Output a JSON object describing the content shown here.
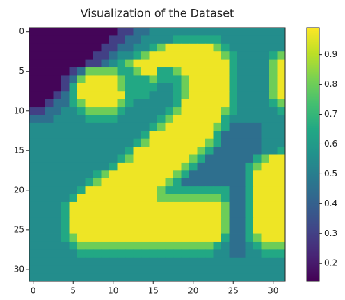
{
  "chart_data": {
    "type": "heatmap",
    "title": "Visualization of the Dataset",
    "colormap": "viridis",
    "xlim": [
      -0.5,
      31.5
    ],
    "ylim": [
      31.5,
      -0.5
    ],
    "xticks": [
      0,
      5,
      10,
      15,
      20,
      25,
      30
    ],
    "yticks": [
      0,
      5,
      10,
      15,
      20,
      25,
      30
    ],
    "clim": [
      0.14,
      0.99
    ],
    "cticks": [
      0.2,
      0.3,
      0.4,
      0.5,
      0.6,
      0.7,
      0.8,
      0.9
    ],
    "values": [
      [
        0.15,
        0.15,
        0.15,
        0.15,
        0.15,
        0.15,
        0.15,
        0.15,
        0.15,
        0.15,
        0.15,
        0.3,
        0.3,
        0.45,
        0.45,
        0.55,
        0.55,
        0.55,
        0.55,
        0.55,
        0.55,
        0.55,
        0.55,
        0.55,
        0.55,
        0.55,
        0.55,
        0.55,
        0.55,
        0.55,
        0.55,
        0.55
      ],
      [
        0.15,
        0.15,
        0.15,
        0.15,
        0.15,
        0.15,
        0.15,
        0.15,
        0.15,
        0.15,
        0.3,
        0.3,
        0.45,
        0.45,
        0.55,
        0.55,
        0.55,
        0.55,
        0.65,
        0.65,
        0.65,
        0.65,
        0.65,
        0.65,
        0.55,
        0.55,
        0.55,
        0.55,
        0.55,
        0.55,
        0.55,
        0.55
      ],
      [
        0.15,
        0.15,
        0.15,
        0.15,
        0.15,
        0.15,
        0.15,
        0.15,
        0.15,
        0.3,
        0.3,
        0.45,
        0.45,
        0.55,
        0.55,
        0.65,
        0.8,
        0.97,
        0.97,
        0.97,
        0.97,
        0.97,
        0.97,
        0.8,
        0.65,
        0.55,
        0.55,
        0.55,
        0.55,
        0.55,
        0.55,
        0.55
      ],
      [
        0.15,
        0.15,
        0.15,
        0.15,
        0.15,
        0.15,
        0.15,
        0.15,
        0.3,
        0.3,
        0.45,
        0.55,
        0.55,
        0.65,
        0.8,
        0.97,
        0.97,
        0.97,
        0.97,
        0.97,
        0.97,
        0.97,
        0.97,
        0.97,
        0.8,
        0.65,
        0.55,
        0.55,
        0.55,
        0.55,
        0.65,
        0.8
      ],
      [
        0.15,
        0.15,
        0.15,
        0.15,
        0.15,
        0.15,
        0.15,
        0.3,
        0.3,
        0.45,
        0.55,
        0.65,
        0.8,
        0.97,
        0.97,
        0.97,
        0.97,
        0.97,
        0.97,
        0.97,
        0.97,
        0.97,
        0.97,
        0.97,
        0.97,
        0.65,
        0.55,
        0.55,
        0.55,
        0.55,
        0.8,
        0.97
      ],
      [
        0.15,
        0.15,
        0.15,
        0.15,
        0.15,
        0.3,
        0.45,
        0.8,
        0.8,
        0.8,
        0.8,
        0.65,
        0.65,
        0.8,
        0.97,
        0.97,
        0.65,
        0.65,
        0.8,
        0.97,
        0.97,
        0.97,
        0.97,
        0.97,
        0.97,
        0.65,
        0.55,
        0.55,
        0.55,
        0.55,
        0.8,
        0.97
      ],
      [
        0.15,
        0.15,
        0.15,
        0.15,
        0.3,
        0.45,
        0.8,
        0.97,
        0.97,
        0.97,
        0.97,
        0.8,
        0.65,
        0.65,
        0.65,
        0.8,
        0.65,
        0.65,
        0.65,
        0.8,
        0.97,
        0.97,
        0.97,
        0.97,
        0.97,
        0.65,
        0.55,
        0.55,
        0.55,
        0.55,
        0.8,
        0.97
      ],
      [
        0.15,
        0.15,
        0.15,
        0.15,
        0.3,
        0.65,
        0.97,
        0.97,
        0.97,
        0.97,
        0.97,
        0.8,
        0.65,
        0.65,
        0.65,
        0.65,
        0.55,
        0.55,
        0.65,
        0.8,
        0.97,
        0.97,
        0.97,
        0.97,
        0.97,
        0.65,
        0.55,
        0.55,
        0.55,
        0.55,
        0.8,
        0.97
      ],
      [
        0.15,
        0.15,
        0.15,
        0.3,
        0.45,
        0.65,
        0.97,
        0.97,
        0.97,
        0.97,
        0.97,
        0.97,
        0.65,
        0.65,
        0.65,
        0.55,
        0.55,
        0.55,
        0.65,
        0.8,
        0.97,
        0.97,
        0.97,
        0.97,
        0.97,
        0.65,
        0.55,
        0.55,
        0.55,
        0.55,
        0.8,
        0.97
      ],
      [
        0.15,
        0.15,
        0.3,
        0.45,
        0.45,
        0.65,
        0.8,
        0.97,
        0.97,
        0.97,
        0.97,
        0.8,
        0.65,
        0.55,
        0.55,
        0.55,
        0.55,
        0.55,
        0.65,
        0.97,
        0.97,
        0.97,
        0.97,
        0.97,
        0.97,
        0.65,
        0.55,
        0.55,
        0.55,
        0.55,
        0.65,
        0.8
      ],
      [
        0.3,
        0.3,
        0.45,
        0.45,
        0.55,
        0.55,
        0.65,
        0.8,
        0.8,
        0.8,
        0.8,
        0.65,
        0.55,
        0.55,
        0.55,
        0.55,
        0.55,
        0.65,
        0.8,
        0.97,
        0.97,
        0.97,
        0.97,
        0.97,
        0.8,
        0.65,
        0.55,
        0.55,
        0.55,
        0.55,
        0.55,
        0.65
      ],
      [
        0.45,
        0.45,
        0.45,
        0.55,
        0.55,
        0.55,
        0.55,
        0.65,
        0.65,
        0.65,
        0.65,
        0.55,
        0.55,
        0.55,
        0.55,
        0.55,
        0.65,
        0.8,
        0.97,
        0.97,
        0.97,
        0.97,
        0.97,
        0.97,
        0.65,
        0.55,
        0.55,
        0.55,
        0.55,
        0.55,
        0.55,
        0.55
      ],
      [
        0.55,
        0.55,
        0.55,
        0.55,
        0.55,
        0.55,
        0.55,
        0.55,
        0.55,
        0.55,
        0.55,
        0.55,
        0.55,
        0.55,
        0.55,
        0.65,
        0.8,
        0.97,
        0.97,
        0.97,
        0.97,
        0.97,
        0.97,
        0.8,
        0.65,
        0.45,
        0.45,
        0.45,
        0.45,
        0.55,
        0.55,
        0.55
      ],
      [
        0.55,
        0.55,
        0.55,
        0.55,
        0.55,
        0.55,
        0.55,
        0.55,
        0.55,
        0.55,
        0.55,
        0.55,
        0.55,
        0.55,
        0.65,
        0.97,
        0.97,
        0.97,
        0.97,
        0.97,
        0.97,
        0.97,
        0.97,
        0.65,
        0.45,
        0.45,
        0.45,
        0.45,
        0.45,
        0.55,
        0.55,
        0.55
      ],
      [
        0.55,
        0.55,
        0.55,
        0.55,
        0.55,
        0.55,
        0.55,
        0.55,
        0.55,
        0.55,
        0.55,
        0.55,
        0.55,
        0.65,
        0.8,
        0.97,
        0.97,
        0.97,
        0.97,
        0.97,
        0.97,
        0.97,
        0.8,
        0.65,
        0.45,
        0.45,
        0.45,
        0.45,
        0.45,
        0.55,
        0.55,
        0.55
      ],
      [
        0.55,
        0.55,
        0.55,
        0.55,
        0.55,
        0.55,
        0.55,
        0.55,
        0.55,
        0.55,
        0.55,
        0.55,
        0.65,
        0.97,
        0.97,
        0.97,
        0.97,
        0.97,
        0.97,
        0.97,
        0.97,
        0.8,
        0.65,
        0.45,
        0.45,
        0.45,
        0.45,
        0.45,
        0.45,
        0.55,
        0.55,
        0.65
      ],
      [
        0.55,
        0.55,
        0.55,
        0.55,
        0.55,
        0.55,
        0.55,
        0.55,
        0.55,
        0.55,
        0.55,
        0.65,
        0.8,
        0.97,
        0.97,
        0.97,
        0.97,
        0.97,
        0.97,
        0.97,
        0.8,
        0.65,
        0.45,
        0.45,
        0.45,
        0.45,
        0.45,
        0.45,
        0.65,
        0.8,
        0.97,
        0.97
      ],
      [
        0.55,
        0.55,
        0.55,
        0.55,
        0.55,
        0.55,
        0.55,
        0.55,
        0.55,
        0.55,
        0.65,
        0.97,
        0.97,
        0.97,
        0.97,
        0.97,
        0.97,
        0.97,
        0.97,
        0.8,
        0.65,
        0.45,
        0.45,
        0.45,
        0.45,
        0.45,
        0.45,
        0.65,
        0.8,
        0.97,
        0.97,
        0.97
      ],
      [
        0.55,
        0.55,
        0.55,
        0.55,
        0.55,
        0.55,
        0.55,
        0.55,
        0.65,
        0.8,
        0.97,
        0.97,
        0.97,
        0.97,
        0.97,
        0.97,
        0.97,
        0.97,
        0.8,
        0.65,
        0.45,
        0.45,
        0.45,
        0.45,
        0.45,
        0.45,
        0.45,
        0.65,
        0.97,
        0.97,
        0.97,
        0.97
      ],
      [
        0.55,
        0.55,
        0.55,
        0.55,
        0.55,
        0.55,
        0.55,
        0.65,
        0.8,
        0.97,
        0.97,
        0.97,
        0.97,
        0.97,
        0.97,
        0.97,
        0.97,
        0.8,
        0.65,
        0.45,
        0.45,
        0.45,
        0.45,
        0.45,
        0.45,
        0.45,
        0.45,
        0.65,
        0.97,
        0.97,
        0.97,
        0.97
      ],
      [
        0.55,
        0.55,
        0.55,
        0.55,
        0.55,
        0.55,
        0.65,
        0.97,
        0.97,
        0.97,
        0.97,
        0.97,
        0.97,
        0.97,
        0.97,
        0.97,
        0.8,
        0.65,
        0.65,
        0.65,
        0.65,
        0.65,
        0.65,
        0.65,
        0.65,
        0.45,
        0.45,
        0.65,
        0.97,
        0.97,
        0.97,
        0.97
      ],
      [
        0.55,
        0.55,
        0.55,
        0.55,
        0.55,
        0.65,
        0.97,
        0.97,
        0.97,
        0.97,
        0.97,
        0.97,
        0.97,
        0.97,
        0.97,
        0.97,
        0.8,
        0.8,
        0.8,
        0.8,
        0.8,
        0.8,
        0.8,
        0.8,
        0.65,
        0.45,
        0.45,
        0.65,
        0.97,
        0.97,
        0.97,
        0.97
      ],
      [
        0.55,
        0.55,
        0.55,
        0.55,
        0.65,
        0.97,
        0.97,
        0.97,
        0.97,
        0.97,
        0.97,
        0.97,
        0.97,
        0.97,
        0.97,
        0.97,
        0.97,
        0.97,
        0.97,
        0.97,
        0.97,
        0.97,
        0.97,
        0.97,
        0.8,
        0.45,
        0.45,
        0.65,
        0.97,
        0.97,
        0.97,
        0.97
      ],
      [
        0.55,
        0.55,
        0.55,
        0.55,
        0.65,
        0.97,
        0.97,
        0.97,
        0.97,
        0.97,
        0.97,
        0.97,
        0.97,
        0.97,
        0.97,
        0.97,
        0.97,
        0.97,
        0.97,
        0.97,
        0.97,
        0.97,
        0.97,
        0.97,
        0.8,
        0.45,
        0.45,
        0.65,
        0.97,
        0.97,
        0.97,
        0.97
      ],
      [
        0.55,
        0.55,
        0.55,
        0.55,
        0.65,
        0.97,
        0.97,
        0.97,
        0.97,
        0.97,
        0.97,
        0.97,
        0.97,
        0.97,
        0.97,
        0.97,
        0.97,
        0.97,
        0.97,
        0.97,
        0.97,
        0.97,
        0.97,
        0.97,
        0.8,
        0.45,
        0.45,
        0.65,
        0.97,
        0.97,
        0.97,
        0.97
      ],
      [
        0.55,
        0.55,
        0.55,
        0.55,
        0.65,
        0.97,
        0.97,
        0.97,
        0.97,
        0.97,
        0.97,
        0.97,
        0.97,
        0.97,
        0.97,
        0.97,
        0.97,
        0.97,
        0.97,
        0.97,
        0.97,
        0.97,
        0.97,
        0.97,
        0.8,
        0.45,
        0.45,
        0.65,
        0.97,
        0.97,
        0.97,
        0.97
      ],
      [
        0.55,
        0.55,
        0.55,
        0.55,
        0.65,
        0.8,
        0.97,
        0.97,
        0.97,
        0.97,
        0.97,
        0.97,
        0.97,
        0.97,
        0.97,
        0.97,
        0.97,
        0.97,
        0.97,
        0.97,
        0.97,
        0.97,
        0.97,
        0.97,
        0.65,
        0.45,
        0.45,
        0.65,
        0.8,
        0.97,
        0.97,
        0.97
      ],
      [
        0.55,
        0.55,
        0.55,
        0.55,
        0.55,
        0.65,
        0.8,
        0.8,
        0.8,
        0.8,
        0.8,
        0.8,
        0.8,
        0.8,
        0.8,
        0.8,
        0.8,
        0.8,
        0.8,
        0.8,
        0.8,
        0.8,
        0.8,
        0.65,
        0.55,
        0.45,
        0.45,
        0.55,
        0.65,
        0.8,
        0.8,
        0.8
      ],
      [
        0.55,
        0.55,
        0.55,
        0.55,
        0.55,
        0.55,
        0.65,
        0.65,
        0.65,
        0.65,
        0.65,
        0.65,
        0.65,
        0.65,
        0.65,
        0.65,
        0.65,
        0.65,
        0.65,
        0.65,
        0.65,
        0.65,
        0.65,
        0.55,
        0.55,
        0.45,
        0.45,
        0.55,
        0.55,
        0.65,
        0.65,
        0.65
      ],
      [
        0.55,
        0.55,
        0.55,
        0.55,
        0.55,
        0.55,
        0.55,
        0.55,
        0.55,
        0.55,
        0.55,
        0.55,
        0.55,
        0.55,
        0.55,
        0.55,
        0.55,
        0.55,
        0.55,
        0.55,
        0.55,
        0.55,
        0.55,
        0.55,
        0.55,
        0.55,
        0.55,
        0.55,
        0.55,
        0.55,
        0.55,
        0.55
      ],
      [
        0.55,
        0.55,
        0.55,
        0.55,
        0.55,
        0.55,
        0.55,
        0.55,
        0.55,
        0.55,
        0.55,
        0.55,
        0.55,
        0.55,
        0.55,
        0.55,
        0.55,
        0.55,
        0.55,
        0.55,
        0.55,
        0.55,
        0.55,
        0.55,
        0.55,
        0.55,
        0.55,
        0.55,
        0.55,
        0.55,
        0.55,
        0.55
      ],
      [
        0.55,
        0.55,
        0.55,
        0.55,
        0.55,
        0.55,
        0.55,
        0.55,
        0.55,
        0.55,
        0.55,
        0.55,
        0.55,
        0.55,
        0.55,
        0.55,
        0.55,
        0.55,
        0.55,
        0.55,
        0.55,
        0.55,
        0.55,
        0.55,
        0.55,
        0.55,
        0.55,
        0.55,
        0.55,
        0.55,
        0.55,
        0.55
      ]
    ]
  }
}
